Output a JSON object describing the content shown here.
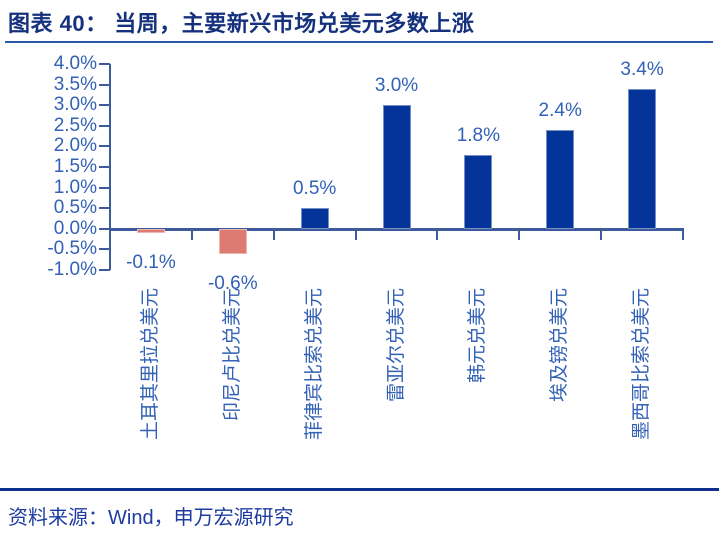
{
  "header": {
    "title": "图表 40： 当周，主要新兴市场兑美元多数上涨"
  },
  "footer": {
    "source": "资料来源：Wind，申万宏源研究"
  },
  "chart_data": {
    "type": "bar",
    "title": "图表 40： 当周，主要新兴市场兑美元多数上涨",
    "categories": [
      "土耳其里拉兑美元",
      "印尼卢比兑美元",
      "菲律宾比索兑美元",
      "雷亚尔兑美元",
      "韩元兑美元",
      "埃及镑兑美元",
      "墨西哥比索兑美元"
    ],
    "values": [
      -0.1,
      -0.6,
      0.5,
      3.0,
      1.8,
      2.4,
      3.4
    ],
    "data_labels": [
      "-0.1%",
      "-0.6%",
      "0.5%",
      "3.0%",
      "1.8%",
      "2.4%",
      "3.4%"
    ],
    "unit": "%",
    "xlabel": "",
    "ylabel": "",
    "ylim": [
      -1.0,
      4.0
    ],
    "ytick_step": 0.5,
    "ytick_labels": [
      "4.0%",
      "3.5%",
      "3.0%",
      "2.5%",
      "2.0%",
      "1.5%",
      "1.0%",
      "0.5%",
      "0.0%",
      "-0.5%",
      "-1.0%"
    ],
    "grid": false,
    "legend": false,
    "colors": {
      "positive_bar": "#043399",
      "negative_bar": "#DD7B72",
      "axis_line": "#3D5B9B",
      "tick_label_text": "#3261B5",
      "data_label_text": "#3261B5",
      "category_label_text": "#3261B5",
      "title_text": "#15317E",
      "source_text": "#1E3CA0"
    }
  }
}
